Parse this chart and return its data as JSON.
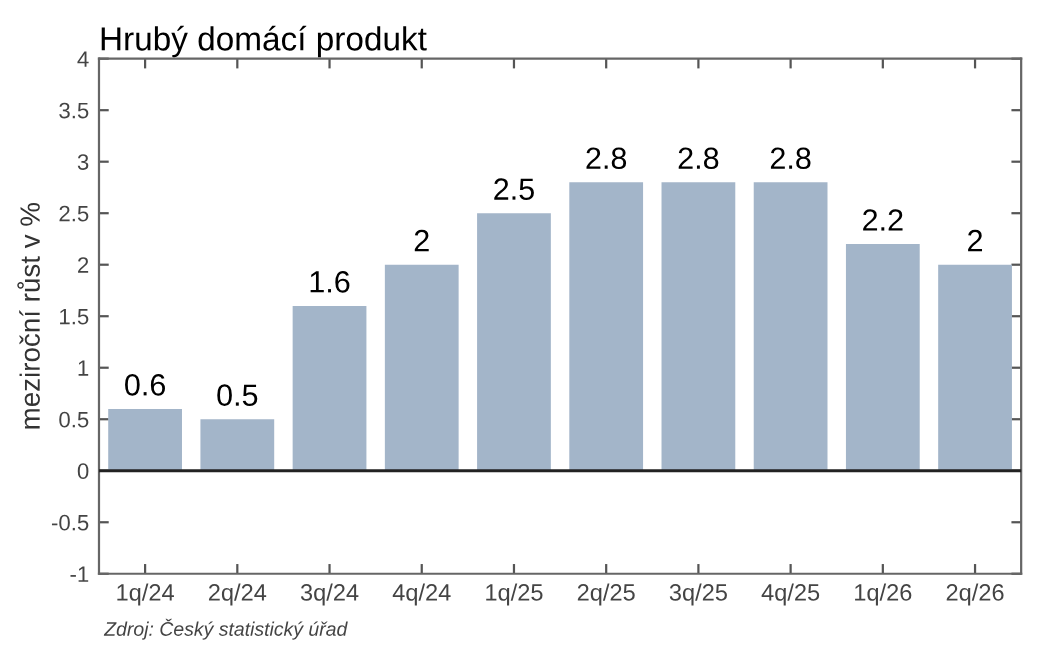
{
  "chart_data": {
    "type": "bar",
    "title": "Hrubý domácí produkt",
    "ylabel": "meziroční růst v %",
    "categories": [
      "1q/24",
      "2q/24",
      "3q/24",
      "4q/24",
      "1q/25",
      "2q/25",
      "3q/25",
      "4q/25",
      "1q/26",
      "2q/26"
    ],
    "values": [
      0.6,
      0.5,
      1.6,
      2,
      2.5,
      2.8,
      2.8,
      2.8,
      2.2,
      2
    ],
    "color": "#a3b5c9",
    "data_labels": true,
    "ylim": [
      -1,
      4
    ],
    "yticks": [
      -1,
      -0.5,
      0,
      0.5,
      1,
      1.5,
      2,
      2.5,
      3,
      3.5,
      4
    ],
    "ref_lines": [
      {
        "axis": "y",
        "value": 0,
        "color": "#222222"
      }
    ],
    "grid": false,
    "annotations": [
      "Zdroj: Český statistický úřad"
    ]
  }
}
